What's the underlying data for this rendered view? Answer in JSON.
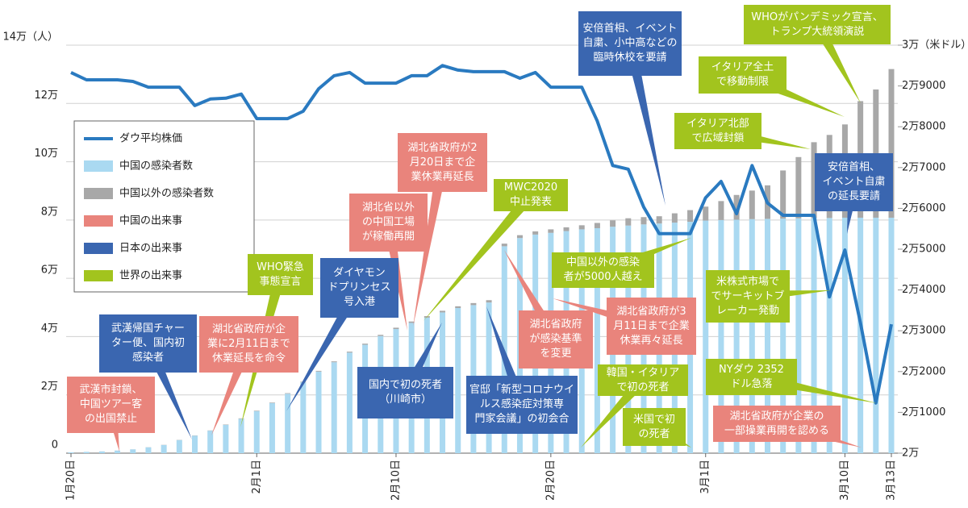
{
  "chart_data": {
    "type": "bar",
    "categories": [
      "1月20日",
      null,
      null,
      null,
      null,
      null,
      null,
      null,
      null,
      null,
      null,
      null,
      "2月1日",
      null,
      null,
      null,
      null,
      null,
      null,
      null,
      null,
      "2月10日",
      null,
      null,
      null,
      null,
      null,
      null,
      null,
      null,
      null,
      "2月20日",
      null,
      null,
      null,
      null,
      null,
      null,
      null,
      null,
      null,
      "3月1日",
      null,
      null,
      null,
      null,
      null,
      null,
      null,
      null,
      "3月10日",
      null,
      null,
      "3月13日"
    ],
    "series": [
      {
        "name": "ダウ平均株価",
        "type": "line",
        "axis": "y2",
        "color": "#2a7ac0",
        "values": [
          29330,
          29150,
          29150,
          29150,
          29110,
          28970,
          28970,
          28970,
          28520,
          28680,
          28700,
          28800,
          28200,
          28200,
          28200,
          28380,
          28930,
          29250,
          29330,
          29070,
          29070,
          29070,
          29250,
          29250,
          29500,
          29390,
          29350,
          29350,
          29350,
          29190,
          29330,
          28970,
          28970,
          28970,
          28140,
          27050,
          26960,
          26030,
          25380,
          25380,
          25380,
          26260,
          26660,
          25870,
          27050,
          26130,
          25830,
          25830,
          25830,
          23830,
          24980,
          23200,
          21230,
          23160
        ]
      },
      {
        "name": "中国の感染者数",
        "color": "#aad9f1",
        "values": [
          300,
          450,
          600,
          900,
          1300,
          2000,
          2800,
          4500,
          6000,
          7700,
          9700,
          11800,
          14400,
          17200,
          20400,
          24300,
          28000,
          31200,
          34500,
          37200,
          40200,
          42600,
          44700,
          46500,
          48300,
          49800,
          50800,
          51700,
          71000,
          73800,
          75000,
          75600,
          76200,
          76800,
          77200,
          77700,
          78100,
          78500,
          78800,
          79100,
          79400,
          79800,
          80000,
          80100,
          80300,
          80400,
          80500,
          80600,
          80700,
          80700,
          80800,
          80800,
          80800,
          80800
        ]
      },
      {
        "name": "中国以外の感染者数",
        "color": "#a8a8a8",
        "values": [
          4,
          6,
          9,
          14,
          25,
          40,
          55,
          70,
          80,
          100,
          130,
          150,
          170,
          180,
          190,
          220,
          250,
          300,
          330,
          370,
          400,
          450,
          480,
          520,
          560,
          600,
          700,
          800,
          900,
          1000,
          1100,
          1200,
          1300,
          1400,
          1800,
          2200,
          2500,
          2500,
          2500,
          3200,
          4000,
          4800,
          6500,
          8500,
          9800,
          11500,
          16500,
          21000,
          26000,
          28500,
          32000,
          40000,
          44000,
          51000
        ]
      }
    ],
    "ylim": [
      0,
      140000
    ],
    "yticks": [
      0,
      {
        "value": 20000,
        "label": "2万"
      },
      {
        "value": 40000,
        "label": "4万"
      },
      {
        "value": 60000,
        "label": "6万"
      },
      {
        "value": 80000,
        "label": "8万"
      },
      {
        "value": 100000,
        "label": "10万"
      },
      {
        "value": 120000,
        "label": "12万"
      },
      {
        "value": 140000,
        "label": "14万（人）"
      }
    ],
    "y2lim": [
      20000,
      30000
    ],
    "y2ticks": [
      {
        "value": 20000,
        "label": "2万"
      },
      {
        "value": 21000,
        "label": "2万1000"
      },
      {
        "value": 22000,
        "label": "2万2000"
      },
      {
        "value": 23000,
        "label": "2万3000"
      },
      {
        "value": 24000,
        "label": "2万4000"
      },
      {
        "value": 25000,
        "label": "2万5000"
      },
      {
        "value": 26000,
        "label": "2万6000"
      },
      {
        "value": 27000,
        "label": "2万7000"
      },
      {
        "value": 28000,
        "label": "2万8000"
      },
      {
        "value": 29000,
        "label": "2万9000"
      },
      {
        "value": 30000,
        "label": "3万（米ドル）"
      }
    ],
    "grid": true,
    "event_types": [
      {
        "name": "中国の出来事",
        "color": "#e9847c",
        "events": [
          "武漢市封鎖、\n中国ツアー客\nの出国禁止",
          "湖北省政府が企\n業に2月11日まで\n休業延長を命令",
          "湖北省以外\nの中国工場\nが稼働再開",
          "湖北省政府が2\n月20日まで企\n業休業再延長",
          "湖北省政府\nが感染基準\nを変更",
          "湖北省政府が3\n月11日まで企業\n休業再々延長",
          "湖北省政府が企業の\n一部操業再開を認める"
        ]
      },
      {
        "name": "日本の出来事",
        "color": "#3a66b0",
        "events": [
          "武漢帰国チャー\nター便、国内初\n感染者",
          "ダイヤモン\nドプリンセス\n号入港",
          "国内で初の死者\n（川崎市）",
          "官邸「新型コロナウイ\nルス感染症対策専\n門家会議」の初会合",
          "安倍首相、イベント\n自粛、小中高などの\n臨時休校を要請",
          "安倍首相、\nイベント自粛\nの延長要請"
        ]
      },
      {
        "name": "世界の出来事",
        "color": "#a2c41e",
        "events": [
          "WHO緊急\n事態宣言",
          "MWC2020\n中止発表",
          "中国以外の感染\n者が5000人越え",
          "米株式市場で\nでサーキットブ\nレーカー発動",
          "韓国・イタリア\nで初の死者",
          "米国で初\nの死者",
          "イタリア北部\nで広域封鎖",
          "イタリア全土\nで移動制限",
          "WHOがパンデミック宣言、\nトランプ大統領演説",
          "NYダウ 2352\nドル急落"
        ]
      }
    ]
  }
}
